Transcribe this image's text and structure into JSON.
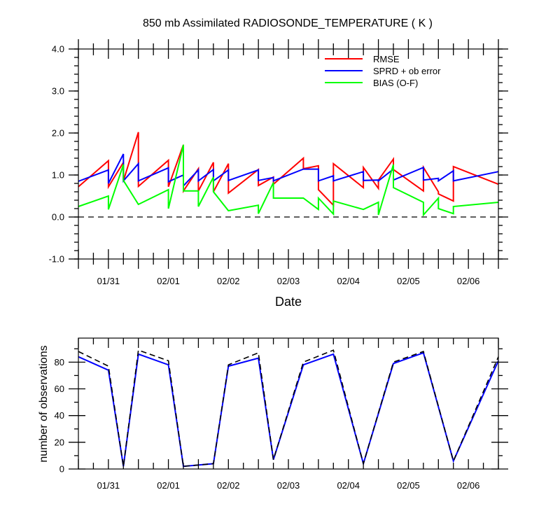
{
  "chart_data": [
    {
      "type": "line",
      "title": "850 mb Assimilated RADIOSONDE_TEMPERATURE ( K )",
      "xlabel": "Date",
      "ylabel": "",
      "ylim": [
        -1.0,
        4.0
      ],
      "yticks": [
        "-1.0",
        "0.0",
        "1.0",
        "2.0",
        "3.0",
        "4.0"
      ],
      "xlim": [
        0,
        84
      ],
      "xticks": [
        {
          "x": 6,
          "label": "01/31"
        },
        {
          "x": 18,
          "label": "02/01"
        },
        {
          "x": 30,
          "label": "02/02"
        },
        {
          "x": 42,
          "label": "02/03"
        },
        {
          "x": 54,
          "label": "02/04"
        },
        {
          "x": 66,
          "label": "02/05"
        },
        {
          "x": 78,
          "label": "02/06"
        }
      ],
      "legend_position": "top-right",
      "zero_line": "dashed",
      "series": [
        {
          "name": "RMSE",
          "color": "#ff0000",
          "x": [
            0,
            6,
            6,
            9,
            9,
            12,
            12,
            18,
            18,
            21,
            21,
            24,
            24,
            27,
            27,
            30,
            30,
            36,
            36,
            39,
            39,
            45,
            45,
            48,
            48,
            51,
            51,
            57,
            57,
            60,
            60,
            63,
            63,
            69,
            69,
            72,
            72,
            75,
            75,
            84
          ],
          "y": [
            0.72,
            1.34,
            0.72,
            1.3,
            0.86,
            2.02,
            0.73,
            1.35,
            0.72,
            1.72,
            0.62,
            1.15,
            0.62,
            1.3,
            0.6,
            1.27,
            0.57,
            1.13,
            0.75,
            0.95,
            0.78,
            1.4,
            1.15,
            1.22,
            0.65,
            0.28,
            1.27,
            0.7,
            1.18,
            0.68,
            0.88,
            1.38,
            1.13,
            0.62,
            1.18,
            0.6,
            0.55,
            0.38,
            1.2,
            0.78
          ]
        },
        {
          "name": "SPRD + ob error",
          "color": "#0000ff",
          "x": [
            0,
            6,
            6,
            9,
            9,
            12,
            12,
            18,
            18,
            21,
            21,
            24,
            24,
            27,
            27,
            30,
            30,
            36,
            36,
            39,
            39,
            45,
            45,
            48,
            48,
            51,
            51,
            57,
            57,
            60,
            60,
            63,
            63,
            69,
            69,
            72,
            72,
            75,
            75,
            84
          ],
          "y": [
            0.85,
            1.12,
            0.8,
            1.5,
            0.86,
            1.27,
            0.86,
            1.17,
            0.84,
            1.0,
            0.74,
            1.12,
            0.86,
            1.13,
            0.86,
            1.12,
            0.87,
            1.12,
            0.87,
            0.94,
            0.86,
            1.14,
            1.14,
            1.14,
            0.86,
            0.98,
            0.86,
            1.08,
            0.87,
            0.88,
            0.86,
            1.14,
            0.88,
            1.18,
            0.88,
            0.92,
            0.86,
            1.1,
            0.86,
            1.08
          ]
        },
        {
          "name": "BIAS (O-F)",
          "color": "#00ff00",
          "x": [
            0,
            6,
            6,
            9,
            9,
            12,
            12,
            18,
            18,
            21,
            21,
            24,
            24,
            27,
            27,
            30,
            30,
            36,
            36,
            39,
            39,
            45,
            45,
            48,
            48,
            51,
            51,
            57,
            57,
            60,
            60,
            63,
            63,
            69,
            69,
            72,
            72,
            75,
            75,
            84
          ],
          "y": [
            0.25,
            0.5,
            0.18,
            1.25,
            0.87,
            0.3,
            0.3,
            0.65,
            0.2,
            1.72,
            0.62,
            0.62,
            0.25,
            0.95,
            0.6,
            0.15,
            0.15,
            0.28,
            0.08,
            0.82,
            0.45,
            0.45,
            0.45,
            0.18,
            0.45,
            0.07,
            0.38,
            0.18,
            0.18,
            0.35,
            0.05,
            1.25,
            0.7,
            0.35,
            0.05,
            0.45,
            0.2,
            0.08,
            0.25,
            0.35
          ]
        }
      ]
    },
    {
      "type": "line",
      "title": "",
      "xlabel": "",
      "ylabel": "number of observations",
      "ylim": [
        0,
        98
      ],
      "yticks": [
        "0",
        "20",
        "40",
        "60",
        "80"
      ],
      "xlim": [
        0,
        84
      ],
      "xticks": [
        {
          "x": 6,
          "label": "01/31"
        },
        {
          "x": 18,
          "label": "02/01"
        },
        {
          "x": 30,
          "label": "02/02"
        },
        {
          "x": 42,
          "label": "02/03"
        },
        {
          "x": 54,
          "label": "02/04"
        },
        {
          "x": 66,
          "label": "02/05"
        },
        {
          "x": 78,
          "label": "02/06"
        }
      ],
      "series": [
        {
          "color": "#0000ff",
          "style": "solid",
          "x": [
            0,
            6,
            9,
            12,
            18,
            21,
            27,
            30,
            36,
            39,
            45,
            51,
            57,
            63,
            69,
            75,
            84
          ],
          "y": [
            84,
            74,
            2,
            86,
            78,
            2,
            4,
            77,
            83,
            7,
            78,
            86,
            4,
            79,
            87,
            6,
            81
          ]
        },
        {
          "color": "#000000",
          "style": "dashed",
          "x": [
            0,
            6,
            9,
            12,
            18,
            21,
            27,
            30,
            36,
            39,
            45,
            51,
            57,
            63,
            69,
            75,
            84
          ],
          "y": [
            88,
            77,
            2,
            89,
            81,
            2,
            4,
            78,
            87,
            7,
            80,
            89,
            4,
            80,
            88,
            6,
            84
          ]
        }
      ]
    }
  ]
}
